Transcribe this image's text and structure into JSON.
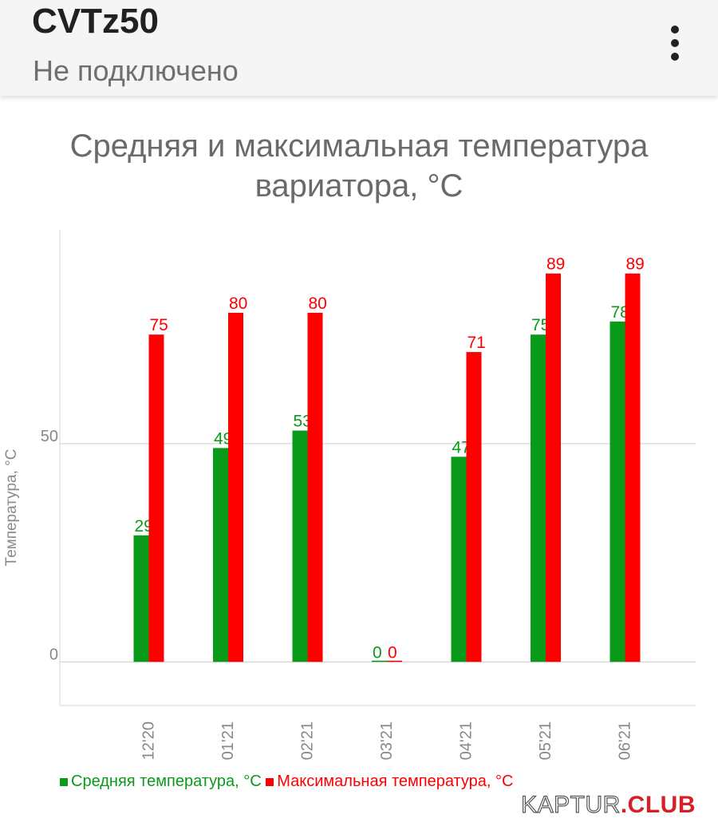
{
  "header": {
    "title": "CVTz50",
    "subtitle": "Не подключено",
    "menu_icon": "more-vert-icon"
  },
  "chart_data": {
    "type": "bar",
    "title_lines": [
      "Средняя и максимальная температура",
      "вариатора, °C"
    ],
    "ylabel": "Температура, °C",
    "xlabel": "",
    "categories": [
      "12'20",
      "01'21",
      "02'21",
      "03'21",
      "04'21",
      "05'21",
      "06'21"
    ],
    "series": [
      {
        "name": "Средняя температура, °C",
        "color": "#0a9a1a",
        "values": [
          29,
          49,
          53,
          0,
          47,
          75,
          78
        ],
        "labels": [
          "29",
          "49",
          "53",
          "0",
          "47",
          "75",
          "78"
        ]
      },
      {
        "name": "Максимальная температура, °C",
        "color": "#ff0000",
        "values": [
          75,
          80,
          80,
          0,
          71,
          89,
          89
        ],
        "labels": [
          "75",
          "80",
          "80",
          "0",
          "71",
          "89",
          "89"
        ]
      }
    ],
    "y_ticks": [
      0,
      50
    ],
    "y_tick_labels": [
      "0",
      "50"
    ],
    "ylim": [
      -10,
      99
    ],
    "grid": true,
    "legend_position": "bottom"
  },
  "watermark": {
    "part1": "KAPTUR",
    "part2": ".CLUB"
  }
}
